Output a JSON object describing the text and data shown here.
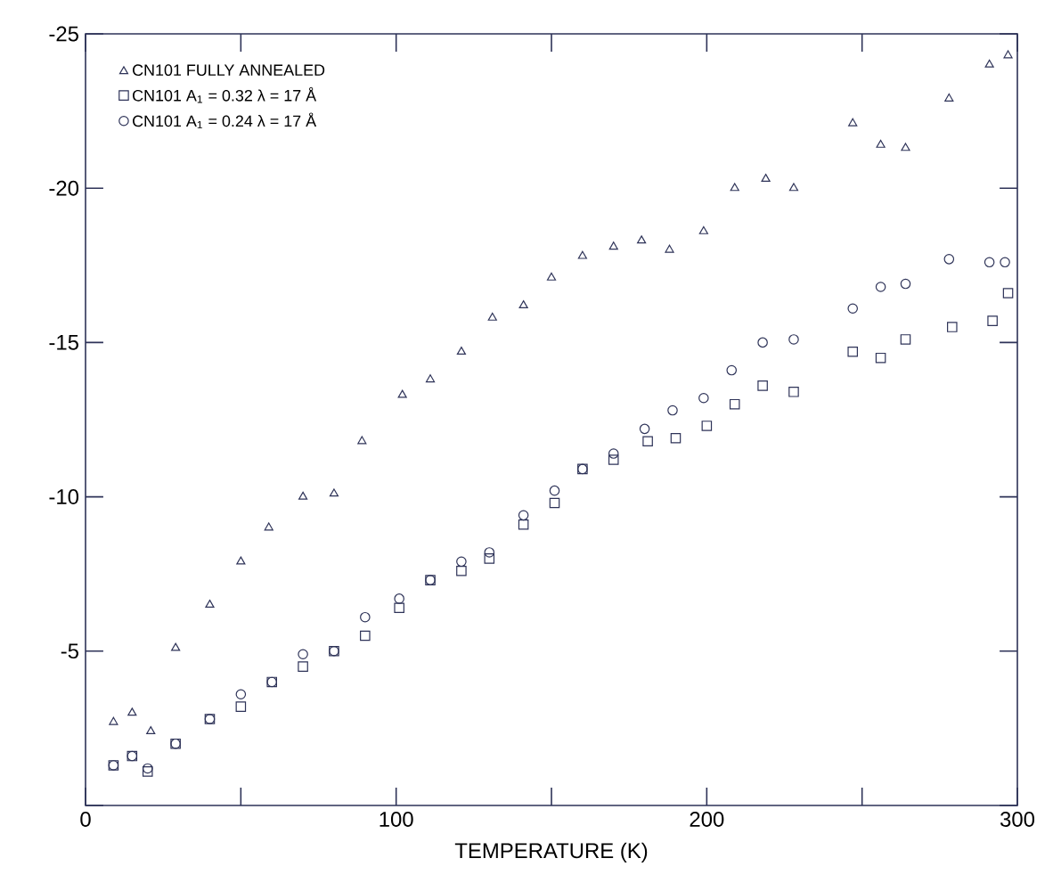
{
  "chart_data": {
    "type": "scatter",
    "xlabel": "TEMPERATURE (K)",
    "xlim": [
      0,
      300
    ],
    "ylim": [
      0,
      -25
    ],
    "xticks": [
      0,
      {
        "value": 50,
        "label": null
      },
      100,
      {
        "value": 150,
        "label": null
      },
      200,
      {
        "value": 250,
        "label": null
      },
      300
    ],
    "yticks": [
      {
        "value": 0,
        "label": null
      },
      -5,
      -10,
      -15,
      -20,
      -25
    ],
    "grid": false,
    "legend": "top left",
    "series": [
      {
        "name": "CN101 FULLY ANNEALED",
        "color": "#2e3358",
        "marker": "triangle",
        "x": [
          9,
          15,
          21,
          29,
          40,
          50,
          59,
          70,
          80,
          89,
          102,
          111,
          121,
          131,
          141,
          150,
          160,
          170,
          179,
          188,
          199,
          209,
          219,
          228,
          247,
          256,
          264,
          278,
          291,
          297
        ],
        "values": [
          -2.7,
          -3.0,
          -2.4,
          -5.1,
          -6.5,
          -7.9,
          -9.0,
          -10.0,
          -10.1,
          -11.8,
          -13.3,
          -13.8,
          -14.7,
          -15.8,
          -16.2,
          -17.1,
          -17.8,
          -18.1,
          -18.3,
          -18.0,
          -18.6,
          -20.0,
          -20.3,
          -20.0,
          -22.1,
          -21.4,
          -21.3,
          -22.9,
          -24.0,
          -24.3
        ]
      },
      {
        "name": "CN101 A$_{1}$ = 0.32  λ = 17 Å",
        "color": "#2e3358",
        "marker": "square",
        "x": [
          9,
          15,
          20,
          29,
          40,
          50,
          60,
          70,
          80,
          90,
          101,
          111,
          121,
          130,
          141,
          151,
          160,
          170,
          181,
          190,
          200,
          209,
          218,
          228,
          247,
          256,
          264,
          279,
          292,
          297
        ],
        "values": [
          -1.3,
          -1.6,
          -1.1,
          -2.0,
          -2.8,
          -3.2,
          -4.0,
          -4.5,
          -5.0,
          -5.5,
          -6.4,
          -7.3,
          -7.6,
          -8.0,
          -9.1,
          -9.8,
          -10.9,
          -11.2,
          -11.8,
          -11.9,
          -12.3,
          -13.0,
          -13.6,
          -13.4,
          -14.7,
          -14.5,
          -15.1,
          -15.5,
          -15.7,
          -16.6
        ]
      },
      {
        "name": "CN101 A$_{1}$ = 0.24  λ = 17 Å",
        "color": "#2e3358",
        "marker": "circle",
        "x": [
          9,
          15,
          20,
          29,
          40,
          50,
          60,
          70,
          80,
          90,
          101,
          111,
          121,
          130,
          141,
          151,
          160,
          170,
          180,
          189,
          199,
          208,
          218,
          228,
          247,
          256,
          264,
          278,
          291,
          296
        ],
        "values": [
          -1.3,
          -1.6,
          -1.2,
          -2.0,
          -2.8,
          -3.6,
          -4.0,
          -4.9,
          -5.0,
          -6.1,
          -6.7,
          -7.3,
          -7.9,
          -8.2,
          -9.4,
          -10.2,
          -10.9,
          -11.4,
          -12.2,
          -12.8,
          -13.2,
          -14.1,
          -15.0,
          -15.1,
          -16.1,
          -16.8,
          -16.9,
          -17.7,
          -17.6,
          -17.6
        ]
      }
    ]
  }
}
